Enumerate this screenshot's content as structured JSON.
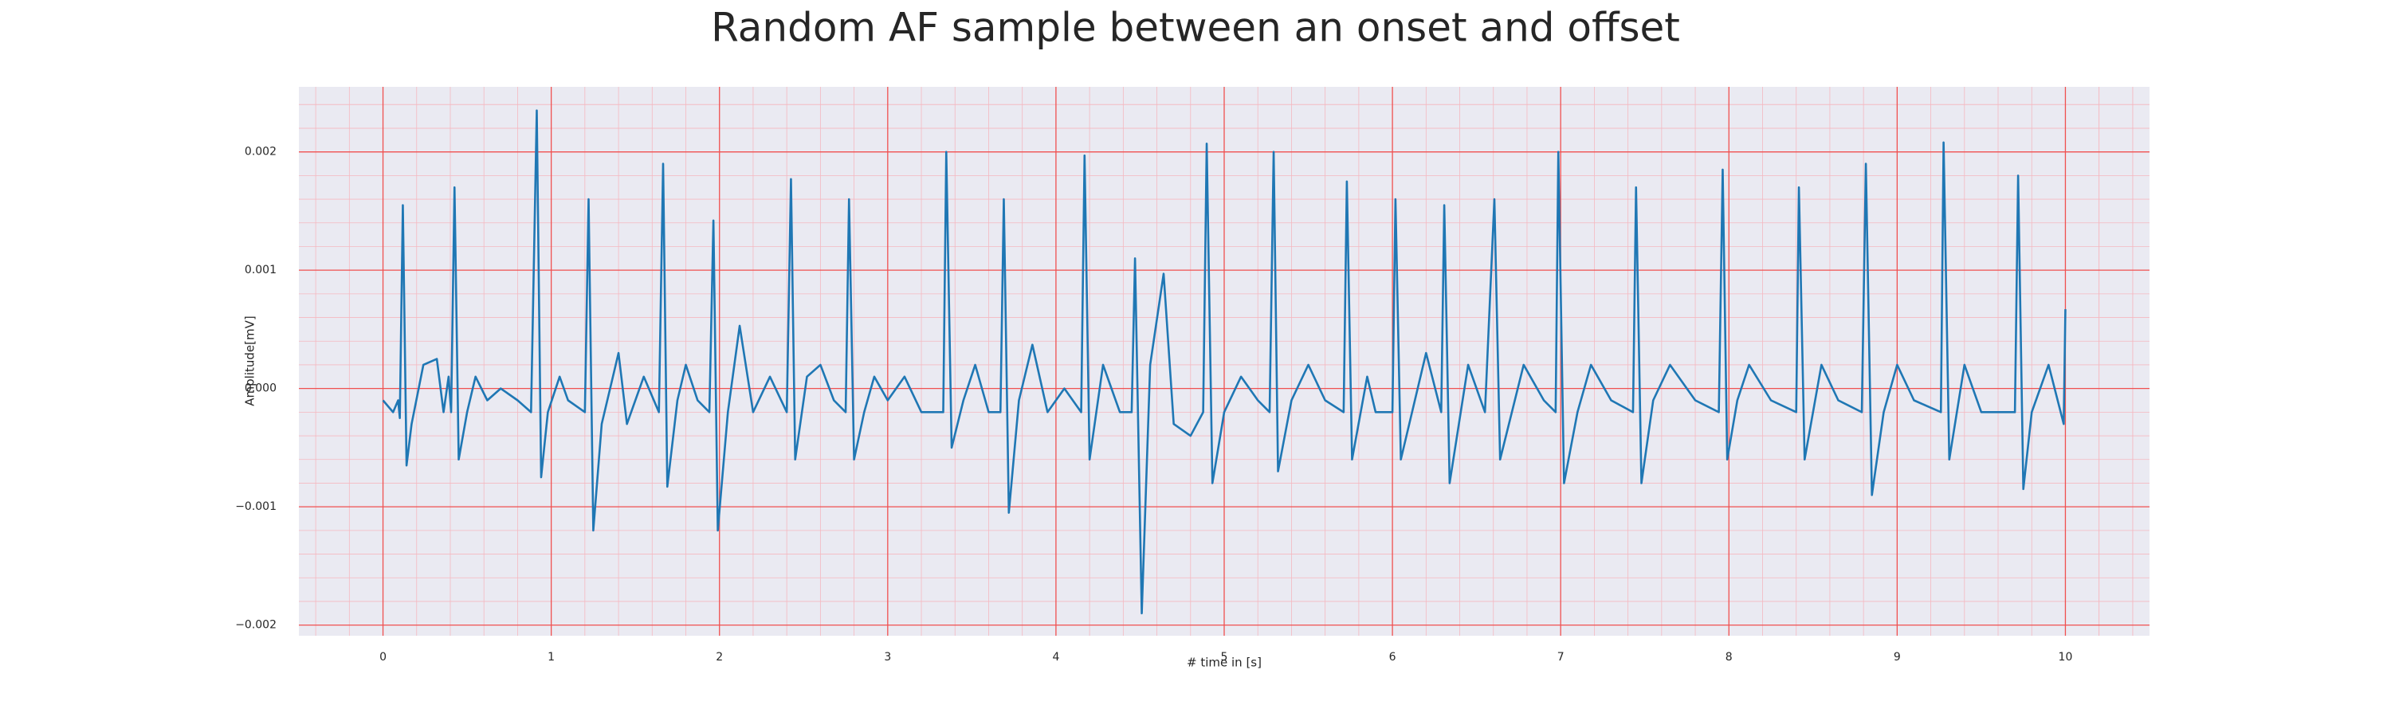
{
  "chart_data": {
    "type": "line",
    "title": "Random AF sample between an onset and offset",
    "x_label": "# time in [s]",
    "y_label": "Amplitude[mV]",
    "color": "#1f77b4",
    "grid": true,
    "minor_grid": true,
    "xlim": [
      -0.5,
      10.5
    ],
    "ylim": [
      -0.00209,
      0.00255
    ],
    "xticks": [
      0,
      1,
      2,
      3,
      4,
      5,
      6,
      7,
      8,
      9,
      10
    ],
    "yticks": [
      {
        "value": -0.002,
        "label": "−0.002"
      },
      {
        "value": -0.001,
        "label": "−0.001"
      },
      {
        "value": 0,
        "label": "0.000"
      },
      0.001,
      0.002
    ],
    "x": [
      0,
      0.06,
      0.09,
      0.1,
      0.118,
      0.14,
      0.17,
      0.24,
      0.32,
      0.36,
      0.39,
      0.405,
      0.425,
      0.45,
      0.5,
      0.55,
      0.62,
      0.7,
      0.8,
      0.88,
      0.914,
      0.94,
      0.98,
      1.05,
      1.1,
      1.2,
      1.222,
      1.25,
      1.3,
      1.4,
      1.45,
      1.55,
      1.64,
      1.665,
      1.69,
      1.75,
      1.8,
      1.87,
      1.94,
      1.964,
      1.99,
      2.05,
      2.12,
      2.2,
      2.3,
      2.4,
      2.425,
      2.45,
      2.52,
      2.6,
      2.68,
      2.75,
      2.77,
      2.8,
      2.86,
      2.92,
      3.0,
      3.1,
      3.2,
      3.33,
      3.348,
      3.38,
      3.45,
      3.52,
      3.6,
      3.67,
      3.69,
      3.72,
      3.78,
      3.86,
      3.95,
      4.05,
      4.15,
      4.17,
      4.2,
      4.28,
      4.38,
      4.45,
      4.47,
      4.51,
      4.56,
      4.64,
      4.7,
      4.8,
      4.875,
      4.896,
      4.93,
      5.0,
      5.1,
      5.2,
      5.27,
      5.294,
      5.32,
      5.4,
      5.5,
      5.6,
      5.71,
      5.729,
      5.76,
      5.85,
      5.9,
      6.0,
      6.018,
      6.05,
      6.2,
      6.29,
      6.308,
      6.34,
      6.45,
      6.55,
      6.606,
      6.64,
      6.78,
      6.9,
      6.97,
      6.986,
      7.02,
      7.1,
      7.18,
      7.3,
      7.43,
      7.448,
      7.48,
      7.55,
      7.65,
      7.8,
      7.94,
      7.963,
      7.99,
      8.05,
      8.12,
      8.25,
      8.4,
      8.416,
      8.45,
      8.55,
      8.65,
      8.79,
      8.814,
      8.85,
      8.92,
      9.0,
      9.1,
      9.26,
      9.276,
      9.31,
      9.4,
      9.5,
      9.7,
      9.719,
      9.75,
      9.8,
      9.9,
      9.99,
      10.0
    ],
    "values": [
      -0.0001,
      -0.0002,
      -0.0001,
      -0.00025,
      0.00155,
      -0.00065,
      -0.0003,
      0.0002,
      0.00025,
      -0.0002,
      0.0001,
      -0.0002,
      0.0017,
      -0.0006,
      -0.0002,
      0.0001,
      -0.0001,
      0.0,
      -0.0001,
      -0.0002,
      0.00235,
      -0.00075,
      -0.0002,
      0.0001,
      -0.0001,
      -0.0002,
      0.0016,
      -0.0012,
      -0.0003,
      0.0003,
      -0.0003,
      0.0001,
      -0.0002,
      0.0019,
      -0.00083,
      -0.0001,
      0.0002,
      -0.0001,
      -0.0002,
      0.00142,
      -0.0012,
      -0.0002,
      0.00053,
      -0.0002,
      0.0001,
      -0.0002,
      0.00177,
      -0.0006,
      0.0001,
      0.0002,
      -0.0001,
      -0.0002,
      0.0016,
      -0.0006,
      -0.0002,
      0.0001,
      -0.0001,
      0.0001,
      -0.0002,
      -0.0002,
      0.002,
      -0.0005,
      -0.0001,
      0.0002,
      -0.0002,
      -0.0002,
      0.0016,
      -0.00105,
      -0.0001,
      0.00037,
      -0.0002,
      0.0,
      -0.0002,
      0.00197,
      -0.0006,
      0.0002,
      -0.0002,
      -0.0002,
      0.0011,
      -0.0019,
      0.0002,
      0.00097,
      -0.0003,
      -0.0004,
      -0.0002,
      0.00207,
      -0.0008,
      -0.0002,
      0.0001,
      -0.0001,
      -0.0002,
      0.002,
      -0.0007,
      -0.0001,
      0.0002,
      -0.0001,
      -0.0002,
      0.00175,
      -0.0006,
      0.0001,
      -0.0002,
      -0.0002,
      0.0016,
      -0.0006,
      0.0003,
      -0.0002,
      0.00155,
      -0.0008,
      0.0002,
      -0.0002,
      0.0016,
      -0.0006,
      0.0002,
      -0.0001,
      -0.0002,
      0.002,
      -0.0008,
      -0.0002,
      0.0002,
      -0.0001,
      -0.0002,
      0.0017,
      -0.0008,
      -0.0001,
      0.0002,
      -0.0001,
      -0.0002,
      0.00185,
      -0.0006,
      -0.0001,
      0.0002,
      -0.0001,
      -0.0002,
      0.0017,
      -0.0006,
      0.0002,
      -0.0001,
      -0.0002,
      0.0019,
      -0.0009,
      -0.0002,
      0.0002,
      -0.0001,
      -0.0002,
      0.00208,
      -0.0006,
      0.0002,
      -0.0002,
      -0.0002,
      0.0018,
      -0.00085,
      -0.0002,
      0.0002,
      -0.0003,
      0.00067
    ]
  }
}
